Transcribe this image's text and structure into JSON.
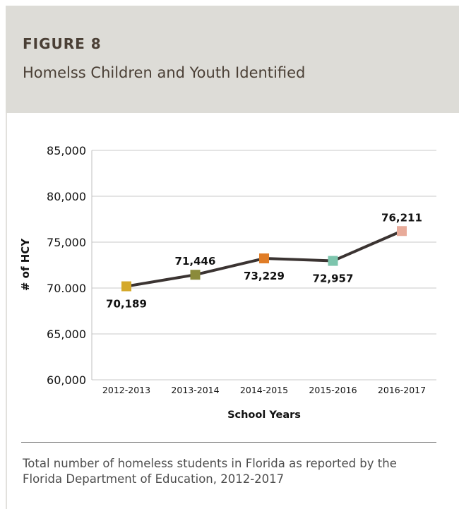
{
  "header": {
    "figure_label": "FIGURE 8",
    "title": "Homelss Children and Youth Identified"
  },
  "chart_data": {
    "type": "line",
    "categories": [
      "2012-2013",
      "2013-2014",
      "2014-2015",
      "2015-2016",
      "2016-2017"
    ],
    "values": [
      70189,
      71446,
      73229,
      72957,
      76211
    ],
    "data_labels": [
      "70,189",
      "71,446",
      "73,229",
      "72,957",
      "76,211"
    ],
    "marker_colors": [
      "#d4a92c",
      "#8b8b3a",
      "#e07d27",
      "#7dc5ad",
      "#e8ab9a"
    ],
    "line_color": "#3b3432",
    "xlabel": "School Years",
    "ylabel": "# of HCY",
    "ylim": [
      60000,
      85000
    ],
    "y_ticks": [
      60000,
      65000,
      70000,
      75000,
      80000,
      85000
    ],
    "y_tick_labels": [
      "60,000",
      "65,000",
      "70.000",
      "75,000",
      "80,000",
      "85,000"
    ],
    "grid": true
  },
  "caption": "Total number of homeless students in Florida as reported by the Florida Department of Education, 2012-2017"
}
